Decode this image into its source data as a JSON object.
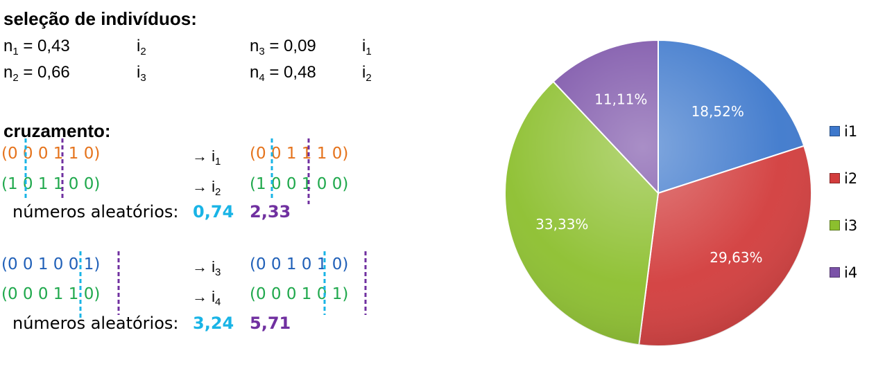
{
  "selection": {
    "title": "seleção de indivíduos:",
    "rows": [
      {
        "n_base": "n",
        "n_sub": "1",
        "value": " = 0,43",
        "ind_base": "i",
        "ind_sub": "2"
      },
      {
        "n_base": "n",
        "n_sub": "2",
        "value": " = 0,66",
        "ind_base": "i",
        "ind_sub": "3"
      },
      {
        "n_base": "n",
        "n_sub": "3",
        "value": " = 0,09",
        "ind_base": "i",
        "ind_sub": "1"
      },
      {
        "n_base": "n",
        "n_sub": "4",
        "value": " = 0,48",
        "ind_base": "i",
        "ind_sub": "2"
      }
    ]
  },
  "crossover": {
    "title": "cruzamento:",
    "arrow": "→ i",
    "random_label": "números aleatórios:",
    "groups": [
      {
        "parents": [
          "(0 0 0 1 1 0)",
          "(1 0 1 1 0 0)"
        ],
        "children": [
          "(0 0 1 1 1 0)",
          "(1 0 0 1 0 0)"
        ],
        "child_subs": [
          "1",
          "2"
        ],
        "random": [
          "0,74",
          "2,33"
        ]
      },
      {
        "parents": [
          "(0 0 1 0 0 1)",
          "(0 0 0 1 1 0)"
        ],
        "children": [
          "(0 0 1 0 1 0)",
          "(0 0 0 1 0 1)"
        ],
        "child_subs": [
          "3",
          "4"
        ],
        "random": [
          "3,24",
          "5,71"
        ]
      }
    ]
  },
  "colors": {
    "cyan": "#19b4e6",
    "purple": "#7030a0",
    "orange": "#e5731c",
    "green": "#1fa84c",
    "blue": "#2060b8"
  },
  "chart_data": {
    "type": "pie",
    "categories": [
      "i1",
      "i2",
      "i3",
      "i4"
    ],
    "values": [
      18.52,
      29.63,
      33.33,
      11.11
    ],
    "labels": [
      "18,52%",
      "29,63%",
      "33,33%",
      "11,11%"
    ],
    "colors": [
      "#3d78cc",
      "#d23c3c",
      "#8cbf2e",
      "#7b52a8"
    ],
    "legend": "right"
  }
}
